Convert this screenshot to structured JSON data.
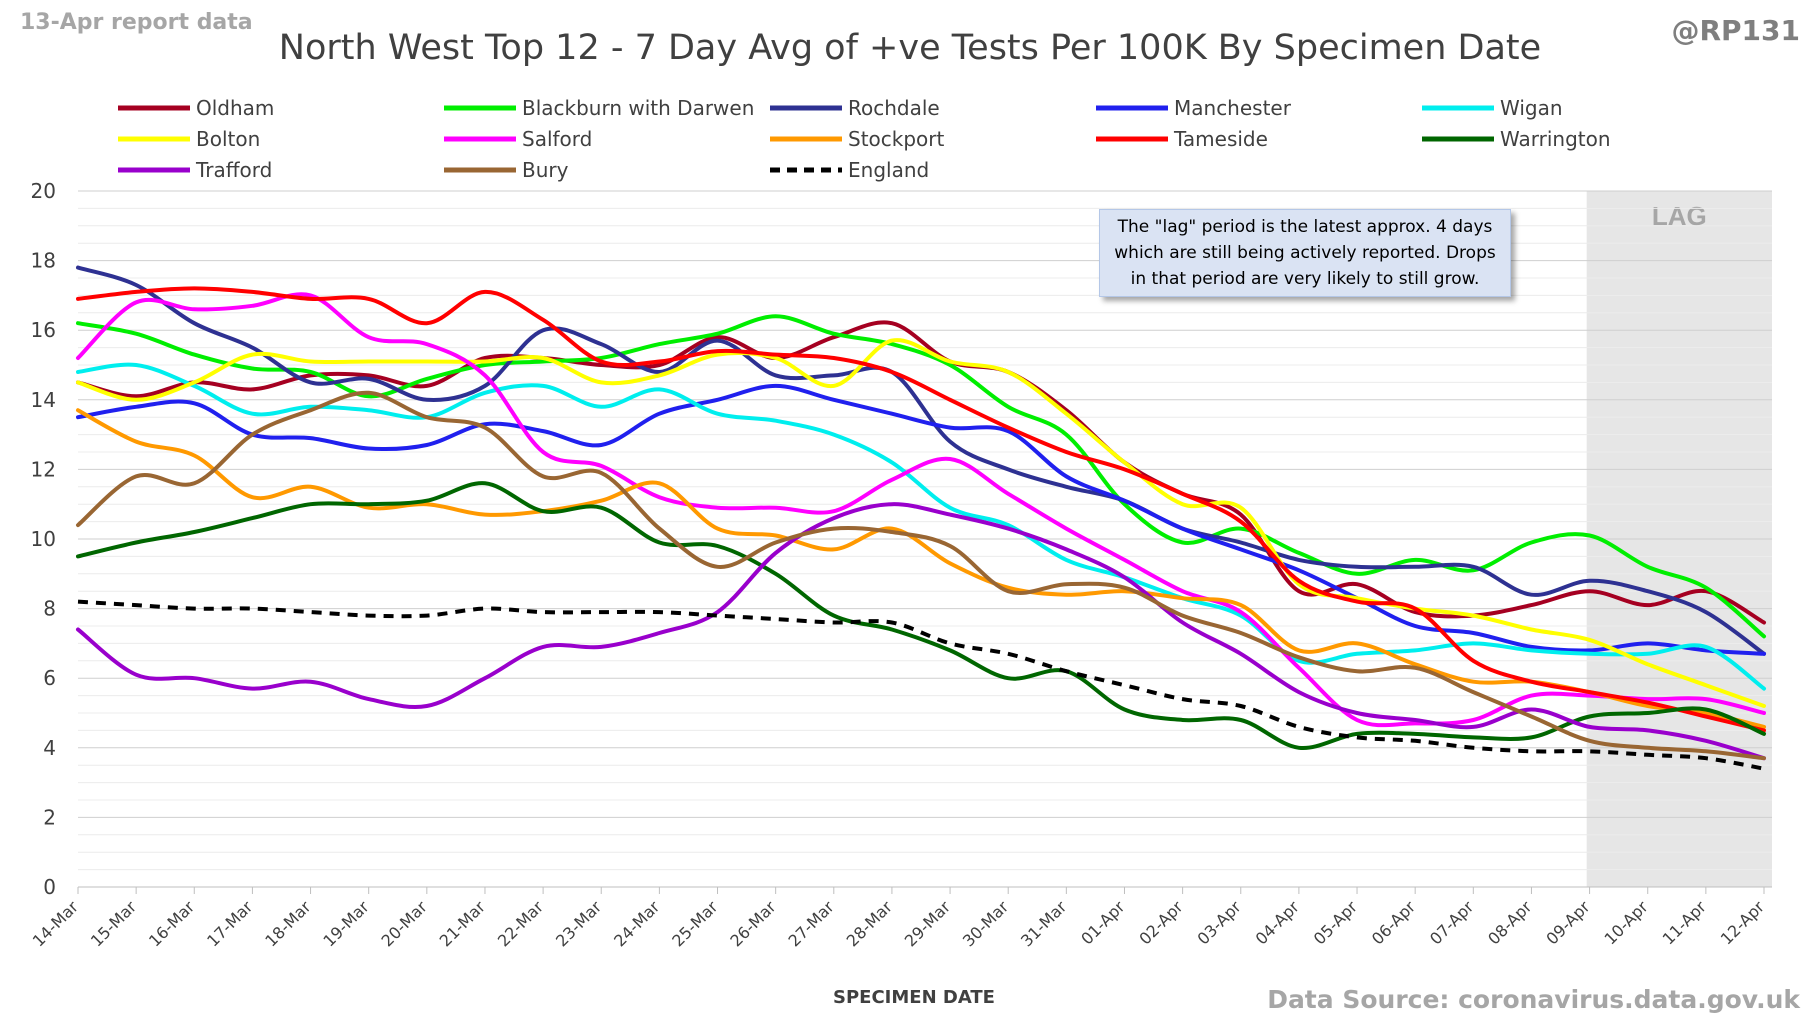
{
  "header": {
    "report_label": "13-Apr report data",
    "handle": "@RP131",
    "source": "Data Source: coronavirus.data.gov.uk"
  },
  "note": "The \"lag\" period is the latest approx. 4 days which are still being actively reported.  Drops in that period are very likely to still grow.",
  "chart_data": {
    "type": "line",
    "title": "North West Top 12 - 7 Day Avg of +ve Tests Per 100K By Specimen Date",
    "xlabel": "SPECIMEN DATE",
    "ylabel": "",
    "ylim": [
      0,
      20
    ],
    "yticks": [
      0,
      2,
      4,
      6,
      8,
      10,
      12,
      14,
      16,
      18,
      20
    ],
    "grid": true,
    "legend_position": "top",
    "categories": [
      "14-Mar",
      "15-Mar",
      "16-Mar",
      "17-Mar",
      "18-Mar",
      "19-Mar",
      "20-Mar",
      "21-Mar",
      "22-Mar",
      "23-Mar",
      "24-Mar",
      "25-Mar",
      "26-Mar",
      "27-Mar",
      "28-Mar",
      "29-Mar",
      "30-Mar",
      "31-Mar",
      "01-Apr",
      "02-Apr",
      "03-Apr",
      "04-Apr",
      "05-Apr",
      "06-Apr",
      "07-Apr",
      "08-Apr",
      "09-Apr",
      "10-Apr",
      "11-Apr",
      "12-Apr"
    ],
    "lag_region": {
      "start": "09-Apr",
      "end": "12-Apr",
      "label": "LAG"
    },
    "series": [
      {
        "name": "Oldham",
        "color": "#a50021",
        "dashed": false,
        "values": [
          14.5,
          14.1,
          14.5,
          14.3,
          14.7,
          14.7,
          14.4,
          15.2,
          15.2,
          15.0,
          15.0,
          15.8,
          15.2,
          15.8,
          16.2,
          15.1,
          14.8,
          13.7,
          12.2,
          11.3,
          10.7,
          8.5,
          8.7,
          7.9,
          7.8,
          8.1,
          8.5,
          8.1,
          8.5,
          7.6
        ]
      },
      {
        "name": "Blackburn with Darwen",
        "color": "#00ee00",
        "dashed": false,
        "values": [
          16.2,
          15.9,
          15.3,
          14.9,
          14.8,
          14.1,
          14.6,
          15.0,
          15.1,
          15.2,
          15.6,
          15.9,
          16.4,
          15.9,
          15.6,
          15.0,
          13.8,
          13.0,
          11.0,
          9.9,
          10.3,
          9.6,
          9.0,
          9.4,
          9.1,
          9.9,
          10.1,
          9.2,
          8.6,
          7.2
        ]
      },
      {
        "name": "Rochdale",
        "color": "#2e3192",
        "dashed": false,
        "values": [
          17.8,
          17.3,
          16.2,
          15.5,
          14.5,
          14.6,
          14.0,
          14.4,
          16.0,
          15.6,
          14.8,
          15.7,
          14.7,
          14.7,
          14.8,
          12.8,
          12.0,
          11.5,
          11.1,
          10.3,
          9.9,
          9.4,
          9.2,
          9.2,
          9.2,
          8.4,
          8.8,
          8.5,
          7.9,
          6.7
        ]
      },
      {
        "name": "Manchester",
        "color": "#2020ee",
        "dashed": false,
        "values": [
          13.5,
          13.8,
          13.9,
          13.0,
          12.9,
          12.6,
          12.7,
          13.3,
          13.1,
          12.7,
          13.6,
          14.0,
          14.4,
          14.0,
          13.6,
          13.2,
          13.1,
          11.8,
          11.1,
          10.3,
          9.7,
          9.1,
          8.3,
          7.5,
          7.3,
          6.9,
          6.8,
          7.0,
          6.8,
          6.7
        ]
      },
      {
        "name": "Wigan",
        "color": "#00eeee",
        "dashed": false,
        "values": [
          14.8,
          15.0,
          14.4,
          13.6,
          13.8,
          13.7,
          13.5,
          14.2,
          14.4,
          13.8,
          14.3,
          13.6,
          13.4,
          13.0,
          12.2,
          10.9,
          10.4,
          9.4,
          8.9,
          8.3,
          7.8,
          6.5,
          6.7,
          6.8,
          7.0,
          6.8,
          6.7,
          6.7,
          6.9,
          5.7
        ]
      },
      {
        "name": "Bolton",
        "color": "#ffff00",
        "dashed": false,
        "values": [
          14.5,
          14.0,
          14.5,
          15.3,
          15.1,
          15.1,
          15.1,
          15.1,
          15.2,
          14.5,
          14.7,
          15.3,
          15.2,
          14.4,
          15.7,
          15.1,
          14.8,
          13.6,
          12.2,
          11.0,
          10.9,
          8.7,
          8.3,
          8.0,
          7.8,
          7.4,
          7.1,
          6.4,
          5.8,
          5.2
        ]
      },
      {
        "name": "Salford",
        "color": "#ff00ff",
        "dashed": false,
        "values": [
          15.2,
          16.8,
          16.6,
          16.7,
          17.0,
          15.8,
          15.6,
          14.7,
          12.5,
          12.1,
          11.2,
          10.9,
          10.9,
          10.8,
          11.7,
          12.3,
          11.3,
          10.3,
          9.4,
          8.5,
          7.9,
          6.3,
          4.8,
          4.7,
          4.8,
          5.5,
          5.5,
          5.4,
          5.4,
          5.0
        ]
      },
      {
        "name": "Stockport",
        "color": "#ff9900",
        "dashed": false,
        "values": [
          13.7,
          12.8,
          12.4,
          11.2,
          11.5,
          10.9,
          11.0,
          10.7,
          10.8,
          11.1,
          11.6,
          10.3,
          10.1,
          9.7,
          10.3,
          9.3,
          8.6,
          8.4,
          8.5,
          8.3,
          8.1,
          6.8,
          7.0,
          6.4,
          5.9,
          5.9,
          5.6,
          5.2,
          5.0,
          4.6
        ]
      },
      {
        "name": "Tameside",
        "color": "#ff0000",
        "dashed": false,
        "values": [
          16.9,
          17.1,
          17.2,
          17.1,
          16.9,
          16.9,
          16.2,
          17.1,
          16.3,
          15.1,
          15.1,
          15.4,
          15.3,
          15.2,
          14.8,
          14.0,
          13.2,
          12.5,
          12.0,
          11.3,
          10.5,
          8.8,
          8.2,
          8.0,
          6.5,
          5.9,
          5.6,
          5.3,
          4.9,
          4.5
        ]
      },
      {
        "name": "Warrington",
        "color": "#006600",
        "dashed": false,
        "values": [
          9.5,
          9.9,
          10.2,
          10.6,
          11.0,
          11.0,
          11.1,
          11.6,
          10.8,
          10.9,
          9.9,
          9.8,
          9.0,
          7.8,
          7.4,
          6.8,
          6.0,
          6.2,
          5.1,
          4.8,
          4.8,
          4.0,
          4.4,
          4.4,
          4.3,
          4.3,
          4.9,
          5.0,
          5.1,
          4.4
        ]
      },
      {
        "name": "Trafford",
        "color": "#9900cc",
        "dashed": false,
        "values": [
          7.4,
          6.1,
          6.0,
          5.7,
          5.9,
          5.4,
          5.2,
          6.0,
          6.9,
          6.9,
          7.3,
          7.9,
          9.6,
          10.6,
          11.0,
          10.7,
          10.3,
          9.7,
          8.9,
          7.6,
          6.7,
          5.6,
          5.0,
          4.8,
          4.6,
          5.1,
          4.6,
          4.5,
          4.2,
          3.7
        ]
      },
      {
        "name": "Bury",
        "color": "#996633",
        "dashed": false,
        "values": [
          10.4,
          11.8,
          11.6,
          13.0,
          13.7,
          14.2,
          13.5,
          13.2,
          11.8,
          11.9,
          10.3,
          9.2,
          9.9,
          10.3,
          10.2,
          9.8,
          8.5,
          8.7,
          8.6,
          7.8,
          7.3,
          6.6,
          6.2,
          6.3,
          5.6,
          4.9,
          4.2,
          4.0,
          3.9,
          3.7
        ]
      },
      {
        "name": "England",
        "color": "#000000",
        "dashed": true,
        "values": [
          8.2,
          8.1,
          8.0,
          8.0,
          7.9,
          7.8,
          7.8,
          8.0,
          7.9,
          7.9,
          7.9,
          7.8,
          7.7,
          7.6,
          7.6,
          7.0,
          6.7,
          6.2,
          5.8,
          5.4,
          5.2,
          4.6,
          4.3,
          4.2,
          4.0,
          3.9,
          3.9,
          3.8,
          3.7,
          3.4
        ]
      }
    ]
  }
}
